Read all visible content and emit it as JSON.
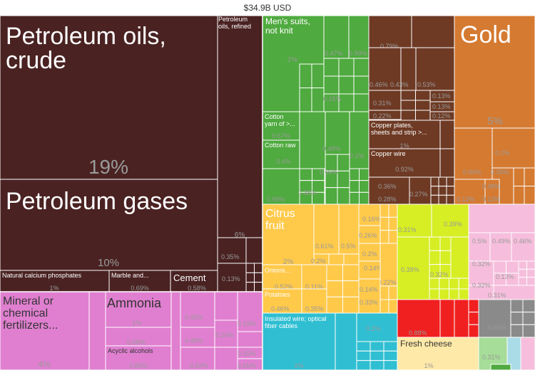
{
  "chart_data": {
    "type": "treemap",
    "title": "$34.9B USD",
    "colors": {
      "mineral": "#4a2222",
      "mineral_light": "#e07fd0",
      "textiles": "#4faa3f",
      "metals": "#6e3a24",
      "precious": "#d57a31",
      "vegetable": "#ffc94a",
      "foodstuffs": "#d6ee23",
      "machinery": "#30bfd2",
      "animal": "#f02020",
      "pink_misc": "#f6bedc",
      "gray_misc": "#8a8a8a",
      "pale_misc": "#ffe9a8",
      "share_text": "#9a9a9a",
      "label_text": "#ffffff"
    },
    "items": [
      {
        "label": "Petroleum oils, crude",
        "share": "19%"
      },
      {
        "label": "Petroleum gases",
        "share": "10%"
      },
      {
        "label": "Petroleum oils, refined",
        "share": "6%"
      },
      {
        "label": "Natural calcium phosphates",
        "share": "1%"
      },
      {
        "label": "Marble and...",
        "share": "0.69%"
      },
      {
        "label": "Cement",
        "share": "0.58%"
      },
      {
        "label": "Mineral or chemical fertilizers...",
        "share": "4%"
      },
      {
        "label": "Ammonia",
        "share": "1%"
      },
      {
        "label": "Acyclic alcohols",
        "share": "0.85%"
      },
      {
        "label": "Men's suits, not knit",
        "share": "2%"
      },
      {
        "label": "Cotton yarn of >...",
        "share": "0.67%"
      },
      {
        "label": "Cotton raw",
        "share": "0.6%"
      },
      {
        "label": "Copper plates, sheets and strip >...",
        "share": "1%"
      },
      {
        "label": "Copper wire",
        "share": "0.92%"
      },
      {
        "label": "Gold",
        "share": "5%"
      },
      {
        "label": "Citrus fruit",
        "share": "2%"
      },
      {
        "label": "Onions...",
        "share": "0.52%"
      },
      {
        "label": "Potatoes",
        "share": "0.46%"
      },
      {
        "label": "Insulated wire; optical fiber cables",
        "share": "2%"
      },
      {
        "label": "Fresh cheese",
        "share": "1%"
      }
    ],
    "other_values": [
      "0.35%",
      "0.13%",
      "0.68%",
      "0.45%",
      "0.48%",
      "0.52%",
      "0.19%",
      "0.24%",
      "0.15%",
      "0.55%",
      "0.47%",
      "0.99%",
      "0.15%",
      "0.66%",
      "0.49%",
      "0.1%",
      "0.66%",
      "0.38%",
      "0.79%",
      "0.97%",
      "0.46%",
      "0.43%",
      "0.53%",
      "0.31%",
      "0.13%",
      "0.13%",
      "0.22%",
      "0.12%",
      "0.36%",
      "0.28%",
      "0.27%",
      "0.94%",
      "0.2%",
      "0.39%",
      "0.13%",
      "0.38%",
      "0.13%",
      "0.61%",
      "0.5%",
      "0.2%",
      "0.16%",
      "0.26%",
      "0.2%",
      "0.14%",
      "0.22%",
      "0.11%",
      "0.15%",
      "0.35%",
      "0.14%",
      "0.33%",
      "0.2%",
      "0.31%",
      "0.39%",
      "0.39%",
      "0.32%",
      "0.5%",
      "0.49%",
      "0.46%",
      "0.32%",
      "0.13%",
      "0.32%",
      "0.31%",
      "0.88%",
      "0.65%",
      "0.31%"
    ]
  }
}
